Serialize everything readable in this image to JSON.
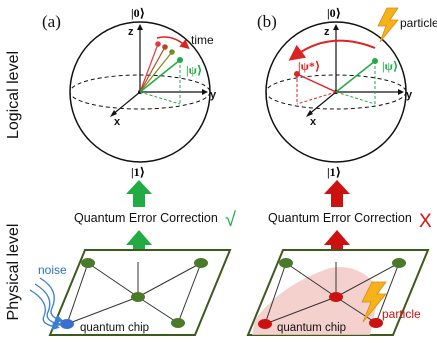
{
  "side_labels": {
    "logical": "Logical level",
    "physical": "Physical level"
  },
  "panels": [
    {
      "id": "a",
      "tag": "(a)",
      "ket_zero": "|0⟩",
      "ket_one": "|1⟩",
      "axis_z": "z",
      "axis_y": "y",
      "axis_x": "x",
      "state_label": "|ψ⟩",
      "motion_label": "time",
      "qec_label": "Quantum Error Correction",
      "qec_mark": "√",
      "noise_label": "noise",
      "chip_label": "quantum chip",
      "colors": {
        "arrow": "#22aa44",
        "state": "#22aa44",
        "nodes": "#4a7a2a",
        "mark": "#22aa44"
      }
    },
    {
      "id": "b",
      "tag": "(b)",
      "ket_zero": "|0⟩",
      "ket_one": "|1⟩",
      "axis_z": "z",
      "axis_y": "y",
      "axis_x": "x",
      "state_label": "|ψ⟩",
      "error_state_label": "|ψ*⟩",
      "event_label": "particle",
      "qec_label": "Quantum Error Correction",
      "qec_mark": "X",
      "chip_label": "quantum chip",
      "event_label_chip": "particle",
      "colors": {
        "arrow": "#cc1111",
        "state": "#22aa44",
        "error_state": "#dd2222",
        "nodes": "#cc1111",
        "mark": "#dd1111",
        "bolt": "#f5b21b"
      }
    }
  ]
}
